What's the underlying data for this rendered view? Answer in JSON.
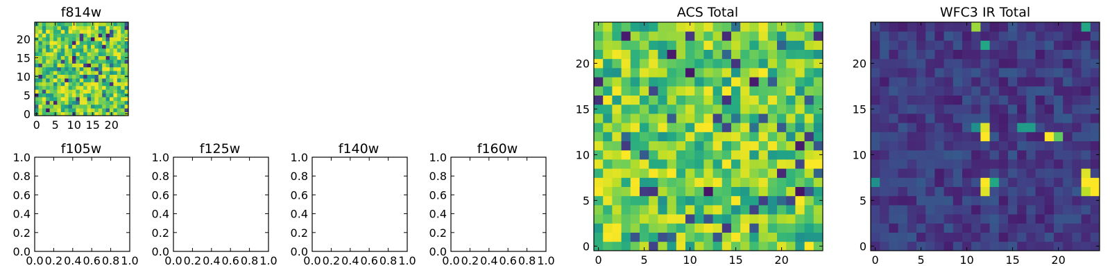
{
  "figure": {
    "description_colormap": "viridis",
    "colors": {
      "frame": "#000000",
      "background": "#ffffff"
    }
  },
  "chart_data": [
    {
      "id": "f814w",
      "type": "heatmap",
      "title": "f814w",
      "grid_size": 25,
      "xlim": [
        -0.5,
        24.5
      ],
      "ylim": [
        -0.5,
        24.5
      ],
      "xticks": [
        0,
        5,
        10,
        15,
        20
      ],
      "yticks": [
        0,
        5,
        10,
        15,
        20
      ],
      "value_range": [
        0,
        1
      ],
      "colormap": "viridis",
      "values_note": "noise-like field of mostly high (green-yellow) values with scattered low pixels"
    },
    {
      "id": "f105w",
      "type": "empty-axes",
      "title": "f105w",
      "xlim": [
        0,
        1
      ],
      "ylim": [
        0,
        1
      ],
      "xticks": [
        "0.0",
        "0.2",
        "0.4",
        "0.6",
        "0.8",
        "1.0"
      ],
      "yticks": [
        "0.0",
        "0.2",
        "0.4",
        "0.6",
        "0.8",
        "1.0"
      ]
    },
    {
      "id": "f125w",
      "type": "empty-axes",
      "title": "f125w",
      "xlim": [
        0,
        1
      ],
      "ylim": [
        0,
        1
      ],
      "xticks": [
        "0.0",
        "0.2",
        "0.4",
        "0.6",
        "0.8",
        "1.0"
      ],
      "yticks": [
        "0.0",
        "0.2",
        "0.4",
        "0.6",
        "0.8",
        "1.0"
      ]
    },
    {
      "id": "f140w",
      "type": "empty-axes",
      "title": "f140w",
      "xlim": [
        0,
        1
      ],
      "ylim": [
        0,
        1
      ],
      "xticks": [
        "0.0",
        "0.2",
        "0.4",
        "0.6",
        "0.8",
        "1.0"
      ],
      "yticks": [
        "0.0",
        "0.2",
        "0.4",
        "0.6",
        "0.8",
        "1.0"
      ]
    },
    {
      "id": "f160w",
      "type": "empty-axes",
      "title": "f160w",
      "xlim": [
        0,
        1
      ],
      "ylim": [
        0,
        1
      ],
      "xticks": [
        "0.0",
        "0.2",
        "0.4",
        "0.6",
        "0.8",
        "1.0"
      ],
      "yticks": [
        "0.0",
        "0.2",
        "0.4",
        "0.6",
        "0.8",
        "1.0"
      ]
    },
    {
      "id": "acs_total",
      "type": "heatmap",
      "title": "ACS Total",
      "grid_size": 25,
      "xlim": [
        -0.5,
        24.5
      ],
      "ylim": [
        -0.5,
        24.5
      ],
      "xticks": [
        0,
        5,
        10,
        15,
        20
      ],
      "yticks": [
        0,
        5,
        10,
        15,
        20
      ],
      "value_range": [
        0,
        1
      ],
      "colormap": "viridis",
      "values_note": "noise-like field, mostly 0.55-1.0 with a few dark pixels"
    },
    {
      "id": "wfc3_ir_total",
      "type": "heatmap",
      "title": "WFC3 IR Total",
      "grid_size": 25,
      "xlim": [
        -0.5,
        24.5
      ],
      "ylim": [
        -0.5,
        24.5
      ],
      "xticks": [
        0,
        5,
        10,
        15,
        20
      ],
      "yticks": [
        0,
        5,
        10,
        15,
        20
      ],
      "value_range": [
        0,
        1
      ],
      "colormap": "viridis",
      "values_note": "dark background (~0.1-0.25) with bright sources",
      "bright_pixels": [
        {
          "x": 12,
          "y": 12,
          "v": 1.0
        },
        {
          "x": 12,
          "y": 13,
          "v": 0.95
        },
        {
          "x": 19,
          "y": 12,
          "v": 1.0
        },
        {
          "x": 20,
          "y": 12,
          "v": 0.75
        },
        {
          "x": 12,
          "y": 7,
          "v": 1.0
        },
        {
          "x": 12,
          "y": 6,
          "v": 0.95
        },
        {
          "x": 13,
          "y": 7,
          "v": 0.6
        },
        {
          "x": 23,
          "y": 7,
          "v": 1.0
        },
        {
          "x": 24,
          "y": 7,
          "v": 1.0
        },
        {
          "x": 23,
          "y": 8,
          "v": 0.95
        },
        {
          "x": 24,
          "y": 6,
          "v": 1.0
        },
        {
          "x": 23,
          "y": 6,
          "v": 0.9
        },
        {
          "x": 11,
          "y": 24,
          "v": 0.85
        },
        {
          "x": 12,
          "y": 22,
          "v": 0.6
        },
        {
          "x": 23,
          "y": 24,
          "v": 0.6
        },
        {
          "x": 11,
          "y": 13,
          "v": 0.5
        },
        {
          "x": 16,
          "y": 13,
          "v": 0.55
        },
        {
          "x": 17,
          "y": 13,
          "v": 0.55
        },
        {
          "x": 0,
          "y": 7,
          "v": 0.5
        }
      ]
    }
  ]
}
